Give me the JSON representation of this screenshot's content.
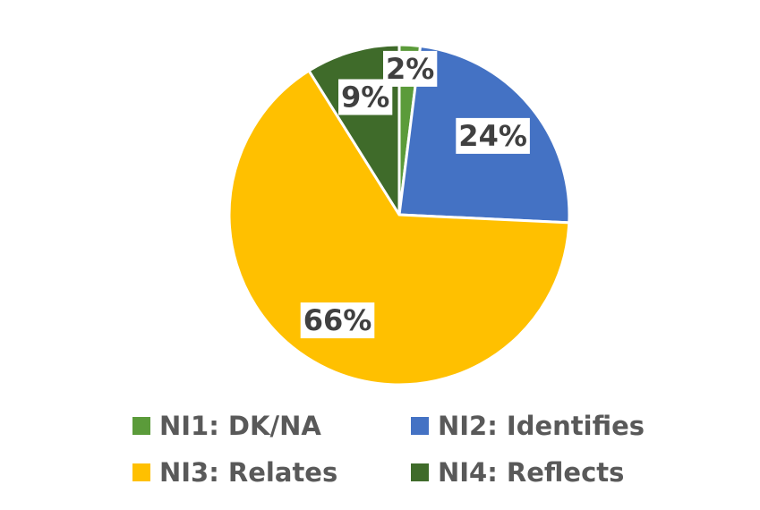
{
  "chart_data": {
    "type": "pie",
    "title": "",
    "start_angle_deg": 0,
    "direction": "clockwise",
    "legend_position": "bottom",
    "slices": [
      {
        "label": "NI1: DK/NA",
        "value": 2,
        "data_label": "2%",
        "color": "#5B9B3A"
      },
      {
        "label": "NI2: Identifies",
        "value": 24,
        "data_label": "24%",
        "color": "#4472C4"
      },
      {
        "label": "NI3: Relates",
        "value": 66,
        "data_label": "66%",
        "color": "#FFC000"
      },
      {
        "label": "NI4: Reflects",
        "value": 9,
        "data_label": "9%",
        "color": "#3F6B2A"
      }
    ]
  }
}
